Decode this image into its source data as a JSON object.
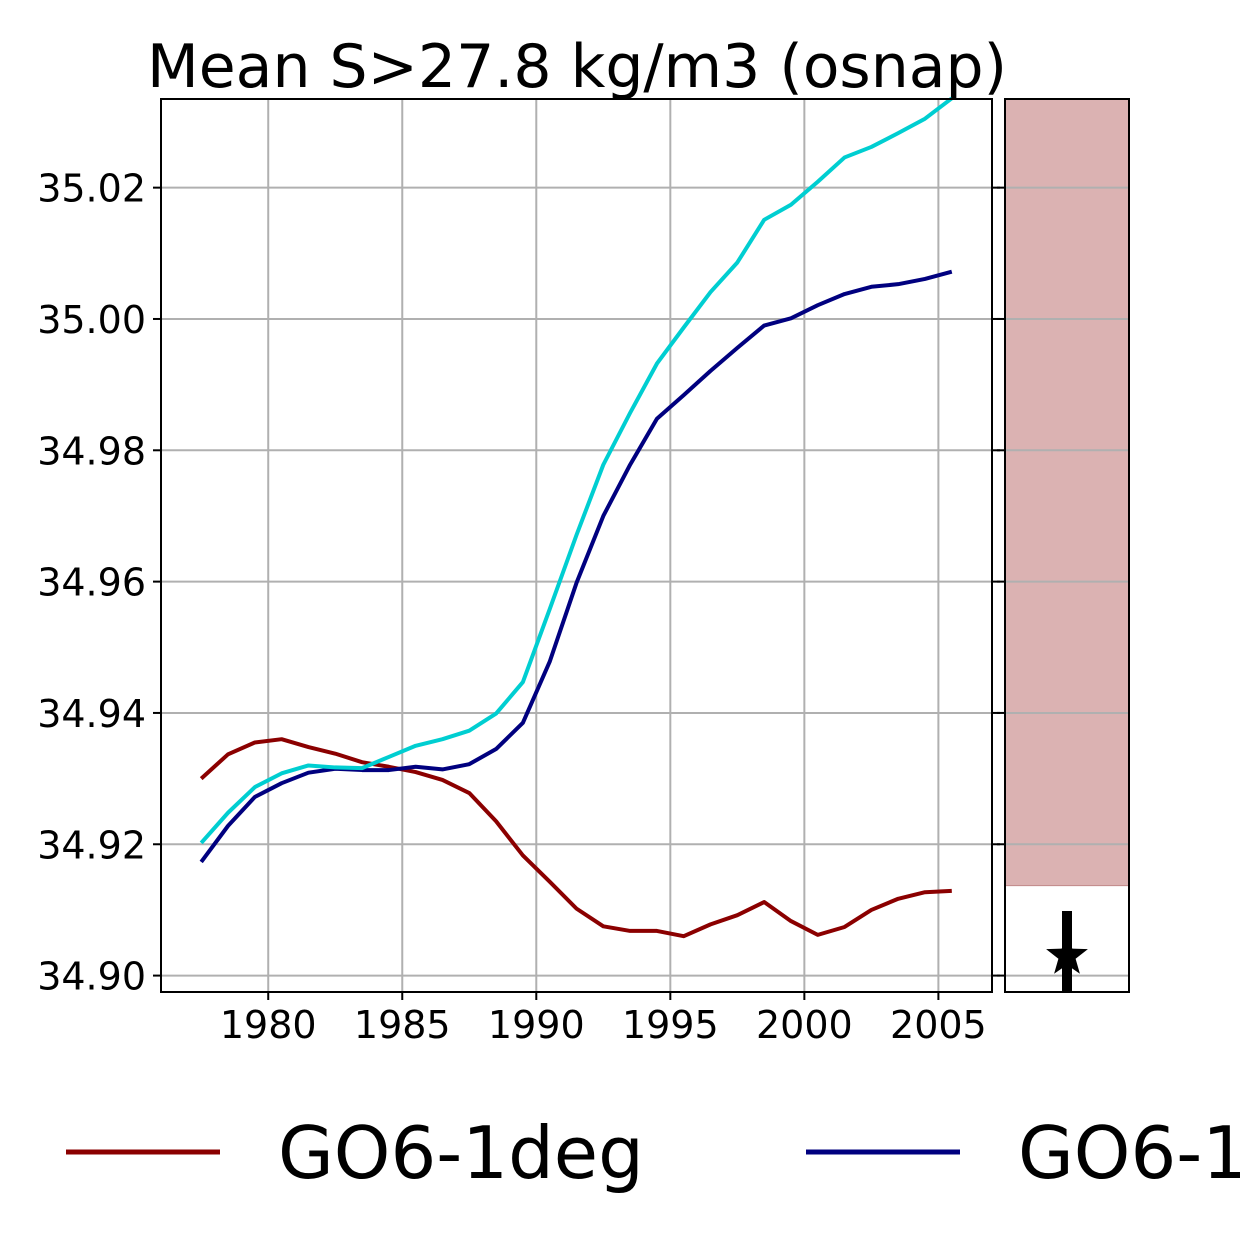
{
  "chart_data": {
    "type": "line",
    "title": "Mean S>27.8 kg/m3 (osnap)",
    "xlabel": "",
    "ylabel": "",
    "xlim": [
      1976,
      2007
    ],
    "ylim": [
      34.8975,
      35.0335
    ],
    "x_ticks": [
      "1980",
      "1985",
      "1990",
      "1995",
      "2000",
      "2005"
    ],
    "y_ticks": [
      "34.90",
      "34.92",
      "34.94",
      "34.96",
      "34.98",
      "35.00",
      "35.02"
    ],
    "grid": true,
    "legend_position": "bottom",
    "x": [
      1977.5,
      1978.5,
      1979.5,
      1980.5,
      1981.5,
      1982.5,
      1983.5,
      1984.5,
      1985.5,
      1986.5,
      1987.5,
      1988.5,
      1989.5,
      1990.5,
      1991.5,
      1992.5,
      1993.5,
      1994.5,
      1995.5,
      1996.5,
      1997.5,
      1998.5,
      1999.5,
      2000.5,
      2001.5,
      2002.5,
      2003.5,
      2004.5,
      2005.5
    ],
    "series": [
      {
        "name": "GO6-1deg",
        "color": "#8b0000",
        "values": [
          34.93,
          34.9337,
          34.9355,
          34.936,
          34.9348,
          34.9338,
          34.9325,
          34.9318,
          34.931,
          34.9298,
          34.9278,
          34.9235,
          34.9183,
          34.9143,
          34.9102,
          34.9075,
          34.9068,
          34.9068,
          34.906,
          34.9078,
          34.9092,
          34.9112,
          34.9083,
          34.9062,
          34.9074,
          34.91,
          34.9117,
          34.9127,
          34.9129
        ]
      },
      {
        "name": "GO6-1",
        "color": "#00007f",
        "values": [
          34.9173,
          34.9228,
          34.9272,
          34.9293,
          34.9309,
          34.9315,
          34.9313,
          34.9313,
          34.9318,
          34.9314,
          34.9322,
          34.9345,
          34.9385,
          34.9478,
          34.9598,
          34.97,
          34.9778,
          34.9848,
          34.9884,
          34.9921,
          34.9956,
          34.999,
          35.0001,
          35.0021,
          35.0038,
          35.0049,
          35.0053,
          35.0061,
          35.0072
        ]
      },
      {
        "name": "",
        "color": "#00ced1",
        "values": [
          34.9202,
          34.9248,
          34.9287,
          34.9308,
          34.932,
          34.9317,
          34.9316,
          34.9333,
          34.935,
          34.936,
          34.9373,
          34.9399,
          34.9447,
          34.9558,
          34.9671,
          34.9778,
          34.9857,
          34.9932,
          34.9987,
          35.0041,
          35.0086,
          35.0151,
          35.0174,
          35.0209,
          35.0246,
          35.0262,
          35.0283,
          35.0305,
          35.0336
        ]
      }
    ],
    "side_panel": {
      "band_color": "#dbb2b2",
      "band_range": [
        34.9137,
        35.0335
      ],
      "marker": "star",
      "marker_value": 34.903,
      "errorbar": [
        34.8975,
        34.908
      ]
    }
  }
}
